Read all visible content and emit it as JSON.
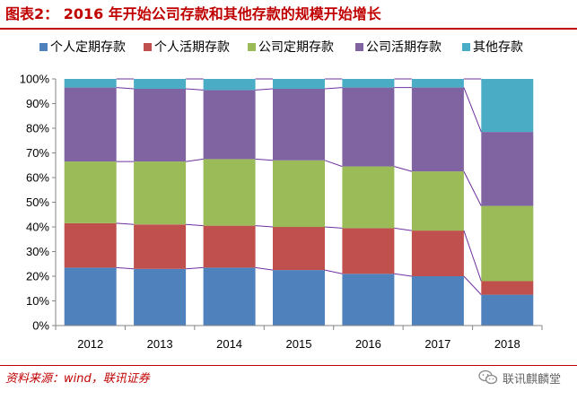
{
  "header": {
    "title": "图表2： 2016 年开始公司存款和其他存款的规模开始增长"
  },
  "footer": {
    "source": "资料来源：wind，联讯证券",
    "watermark": "联讯麒麟堂",
    "watermark_icon": "wechat-icon"
  },
  "chart_data": {
    "type": "bar",
    "stacked": true,
    "percent": true,
    "categories": [
      "2012",
      "2013",
      "2014",
      "2015",
      "2016",
      "2017",
      "2018"
    ],
    "yticks": [
      "0%",
      "10%",
      "20%",
      "30%",
      "40%",
      "50%",
      "60%",
      "70%",
      "80%",
      "90%",
      "100%"
    ],
    "ylim": [
      0,
      100
    ],
    "legend_position": "top",
    "series_lines": true,
    "series": [
      {
        "name": "个人定期存款",
        "color": "#4f81bd",
        "values": [
          23.5,
          23,
          23.5,
          22.5,
          21,
          20,
          12.5
        ]
      },
      {
        "name": "个人活期存款",
        "color": "#c0504d",
        "values": [
          18,
          18,
          17,
          17.5,
          18.5,
          18.5,
          5.5
        ]
      },
      {
        "name": "公司定期存款",
        "color": "#9bbb59",
        "values": [
          25,
          25.5,
          27,
          27,
          25,
          24,
          30.5
        ]
      },
      {
        "name": "公司活期存款",
        "color": "#8064a2",
        "values": [
          30,
          29.5,
          28,
          29,
          32,
          34,
          30
        ]
      },
      {
        "name": "其他存款",
        "color": "#4bacc6",
        "values": [
          3.5,
          4,
          4.5,
          4,
          3.5,
          3.5,
          21.5
        ]
      }
    ]
  }
}
